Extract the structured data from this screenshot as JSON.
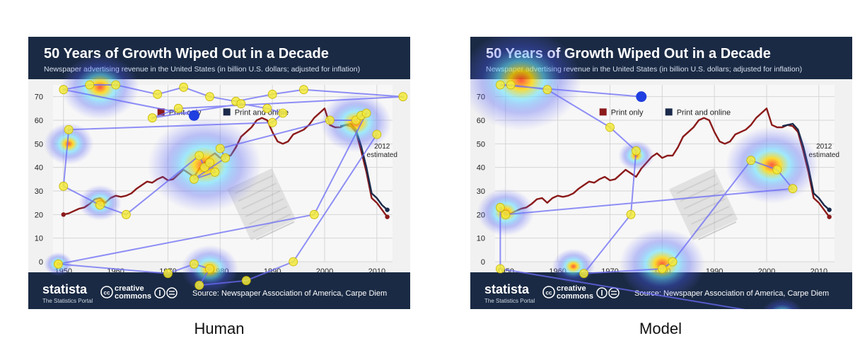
{
  "panels": [
    {
      "caption": "Human",
      "title": "50 Years of Growth Wiped Out in a Decade",
      "subtitle": "Newspaper advertising revenue in the United States (in billion U.S. dollars; adjusted for inflation)",
      "footer": {
        "brand": "statista",
        "brand_tagline": "The Statistics Portal",
        "license_top": "creative",
        "license_bottom": "commons",
        "source": "Source: Newspaper Association of America, Carpe Diem"
      }
    },
    {
      "caption": "Model",
      "title": "50 Years of Growth Wiped Out in a Decade",
      "subtitle": "Newspaper advertising revenue in the United States (in billion U.S. dollars; adjusted for inflation)",
      "footer": {
        "brand": "statista",
        "brand_tagline": "The Statistics Portal",
        "license_top": "creative",
        "license_bottom": "commons",
        "source": "Source: Newspaper Association of America, Carpe Diem"
      }
    }
  ],
  "colors": {
    "header_bg": "#1a2a44",
    "print_only": "#8b1a1a",
    "print_online": "#1b2a4a",
    "fixation": "#f2ea3a",
    "scanpath": "#6b6bf5",
    "start_dot": "#1f3fe0"
  },
  "chart_data": {
    "type": "line",
    "title": "50 Years of Growth Wiped Out in a Decade",
    "subtitle": "Newspaper advertising revenue in the United States (in billion U.S. dollars; adjusted for inflation)",
    "xlabel": "",
    "ylabel": "",
    "xlim": [
      1948,
      2013
    ],
    "ylim": [
      0,
      75
    ],
    "x_ticks": [
      1950,
      1960,
      1970,
      1980,
      1990,
      2000,
      2010
    ],
    "y_ticks": [
      0,
      10,
      20,
      30,
      40,
      50,
      60,
      70
    ],
    "grid": true,
    "legend_position": "top-center",
    "annotation": "2012\nestimated",
    "series": [
      {
        "name": "Print only",
        "color": "#8b1a1a",
        "points": [
          [
            1950,
            20
          ],
          [
            1951,
            20.5
          ],
          [
            1952,
            21.5
          ],
          [
            1953,
            22.5
          ],
          [
            1954,
            23
          ],
          [
            1955,
            24.5
          ],
          [
            1956,
            26.5
          ],
          [
            1957,
            27
          ],
          [
            1958,
            25
          ],
          [
            1959,
            27
          ],
          [
            1960,
            28
          ],
          [
            1961,
            27.5
          ],
          [
            1962,
            28
          ],
          [
            1963,
            29
          ],
          [
            1964,
            31
          ],
          [
            1965,
            32.5
          ],
          [
            1966,
            34
          ],
          [
            1967,
            33.5
          ],
          [
            1968,
            35
          ],
          [
            1969,
            36
          ],
          [
            1970,
            34.5
          ],
          [
            1971,
            35
          ],
          [
            1972,
            37
          ],
          [
            1973,
            39
          ],
          [
            1974,
            37.5
          ],
          [
            1975,
            36
          ],
          [
            1976,
            39.5
          ],
          [
            1977,
            42
          ],
          [
            1978,
            44.5
          ],
          [
            1979,
            46
          ],
          [
            1980,
            44
          ],
          [
            1981,
            45
          ],
          [
            1982,
            45
          ],
          [
            1983,
            48.5
          ],
          [
            1984,
            53
          ],
          [
            1985,
            55
          ],
          [
            1986,
            57
          ],
          [
            1987,
            60
          ],
          [
            1988,
            61
          ],
          [
            1989,
            60
          ],
          [
            1990,
            55
          ],
          [
            1991,
            51
          ],
          [
            1992,
            50
          ],
          [
            1993,
            51
          ],
          [
            1994,
            54
          ],
          [
            1995,
            55
          ],
          [
            1996,
            56
          ],
          [
            1997,
            58
          ],
          [
            1998,
            61
          ],
          [
            1999,
            63
          ],
          [
            2000,
            65
          ],
          [
            2001,
            58
          ],
          [
            2002,
            57
          ],
          [
            2003,
            57
          ],
          [
            2004,
            58
          ],
          [
            2005,
            57.5
          ],
          [
            2006,
            55
          ],
          [
            2007,
            47
          ],
          [
            2008,
            38
          ],
          [
            2009,
            27
          ],
          [
            2010,
            25
          ],
          [
            2011,
            22
          ],
          [
            2012,
            19
          ]
        ]
      },
      {
        "name": "Print and online",
        "color": "#1b2a4a",
        "points": [
          [
            2003,
            57.5
          ],
          [
            2004,
            58
          ],
          [
            2005,
            58.5
          ],
          [
            2006,
            56
          ],
          [
            2007,
            49
          ],
          [
            2008,
            40
          ],
          [
            2009,
            29
          ],
          [
            2010,
            27
          ],
          [
            2011,
            24
          ],
          [
            2012,
            22
          ]
        ]
      }
    ]
  },
  "gaze": {
    "human": {
      "start": [
        1975,
        62
      ],
      "fixations": [
        [
          1950,
          73
        ],
        [
          1955,
          75
        ],
        [
          1960,
          75
        ],
        [
          1968,
          71
        ],
        [
          1973,
          74
        ],
        [
          1978,
          70
        ],
        [
          1983,
          68
        ],
        [
          1990,
          71
        ],
        [
          1996,
          73
        ],
        [
          2015,
          70
        ],
        [
          1972,
          65
        ],
        [
          1967,
          61
        ],
        [
          1984,
          67
        ],
        [
          1989,
          65
        ],
        [
          1992,
          63
        ],
        [
          1990,
          59
        ],
        [
          1951,
          56
        ],
        [
          1950,
          32
        ],
        [
          1957,
          24
        ],
        [
          1962,
          20
        ],
        [
          1976,
          45
        ],
        [
          1977,
          40
        ],
        [
          1978,
          42
        ],
        [
          1979,
          38
        ],
        [
          1975,
          35
        ],
        [
          1981,
          44
        ],
        [
          1980,
          48
        ],
        [
          2001,
          60
        ],
        [
          2006,
          60
        ],
        [
          2007,
          62
        ],
        [
          2008,
          63
        ],
        [
          1998,
          20
        ],
        [
          1949,
          -1
        ],
        [
          1970,
          -5
        ],
        [
          1975,
          -1
        ],
        [
          1978,
          -3
        ],
        [
          1976,
          -10
        ],
        [
          1985,
          -8
        ],
        [
          1994,
          0
        ],
        [
          2010,
          54
        ]
      ],
      "heat": [
        [
          1957,
          74,
          1.1
        ],
        [
          1977,
          41,
          1.6
        ],
        [
          2006,
          59,
          1.0
        ],
        [
          1978,
          -3,
          0.8
        ],
        [
          1957,
          25,
          0.6
        ],
        [
          1951,
          50,
          0.7
        ],
        [
          1949,
          -1,
          0.4
        ]
      ]
    },
    "model": {
      "start": [
        1976,
        70
      ],
      "fixations": [
        [
          1949,
          75
        ],
        [
          1951,
          75
        ],
        [
          1958,
          73
        ],
        [
          1970,
          57
        ],
        [
          1975,
          47
        ],
        [
          1974,
          20
        ],
        [
          1965,
          -5
        ],
        [
          1980,
          -3
        ],
        [
          1982,
          0
        ],
        [
          1997,
          43
        ],
        [
          2002,
          39
        ],
        [
          2005,
          31
        ],
        [
          1950,
          20
        ],
        [
          1949,
          23
        ],
        [
          1949,
          -3
        ],
        [
          2003,
          -23
        ]
      ],
      "heat": [
        [
          1953,
          77,
          1.7
        ],
        [
          1980,
          -1,
          1.2
        ],
        [
          2001,
          41,
          1.3
        ],
        [
          1950,
          21,
          0.8
        ],
        [
          1963,
          -2,
          0.6
        ],
        [
          2003,
          -23,
          0.6
        ],
        [
          1975,
          45,
          0.5
        ]
      ]
    }
  }
}
